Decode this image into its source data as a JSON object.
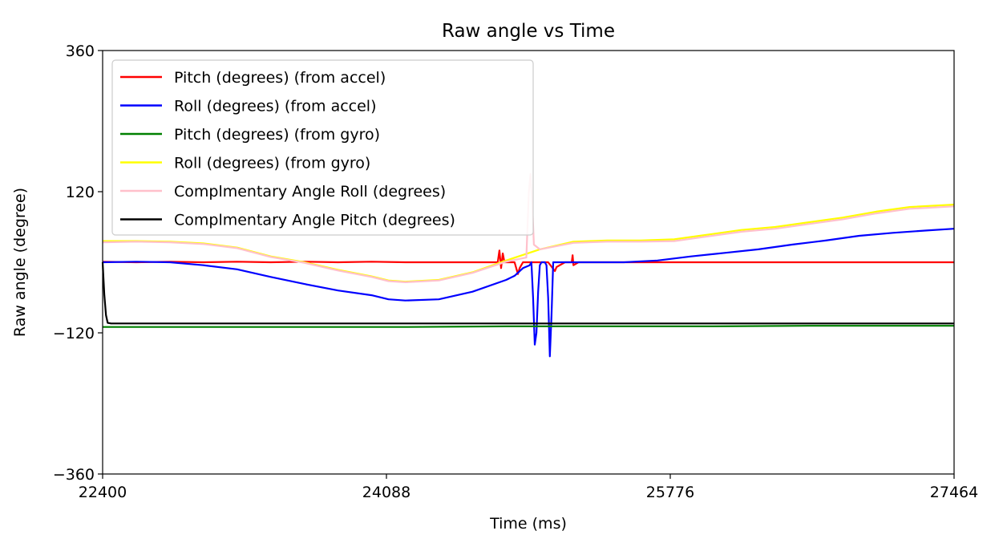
{
  "chart_data": {
    "type": "line",
    "title": "Raw angle vs Time",
    "xlabel": "Time (ms)",
    "ylabel": "Raw angle (degree)",
    "xlim": [
      22400,
      27464
    ],
    "ylim": [
      -360,
      360
    ],
    "xticks": [
      22400,
      24088,
      25776,
      27464
    ],
    "xtick_labels": [
      "22400",
      "24088",
      "25776",
      "27464"
    ],
    "yticks": [
      -360,
      -120,
      120,
      360
    ],
    "ytick_labels": [
      "−360",
      "−120",
      "120",
      "360"
    ],
    "grid": false,
    "legend_position": "top-left",
    "series": [
      {
        "name": "Pitch (degrees) (from accel)",
        "color": "#ff0000",
        "points": [
          [
            22400,
            1
          ],
          [
            22600,
            0
          ],
          [
            22800,
            1
          ],
          [
            23000,
            0
          ],
          [
            23200,
            1
          ],
          [
            23400,
            0
          ],
          [
            23600,
            1
          ],
          [
            23800,
            0
          ],
          [
            24000,
            1
          ],
          [
            24200,
            0
          ],
          [
            24400,
            0
          ],
          [
            24600,
            0
          ],
          [
            24750,
            0
          ],
          [
            24760,
            20
          ],
          [
            24770,
            -10
          ],
          [
            24780,
            15
          ],
          [
            24790,
            0
          ],
          [
            24850,
            0
          ],
          [
            24870,
            -20
          ],
          [
            24880,
            -10
          ],
          [
            24900,
            0
          ],
          [
            24950,
            0
          ],
          [
            25050,
            0
          ],
          [
            25090,
            -15
          ],
          [
            25100,
            -8
          ],
          [
            25150,
            0
          ],
          [
            25190,
            0
          ],
          [
            25195,
            12
          ],
          [
            25200,
            -5
          ],
          [
            25230,
            0
          ],
          [
            25300,
            0
          ],
          [
            25400,
            0
          ],
          [
            25600,
            0
          ],
          [
            25800,
            0
          ],
          [
            26000,
            0
          ],
          [
            26200,
            0
          ],
          [
            26400,
            0
          ],
          [
            26600,
            0
          ],
          [
            26800,
            0
          ],
          [
            27000,
            0
          ],
          [
            27200,
            0
          ],
          [
            27464,
            0
          ]
        ]
      },
      {
        "name": "Roll (degrees) (from accel)",
        "color": "#0000ff",
        "points": [
          [
            22400,
            0
          ],
          [
            22600,
            1
          ],
          [
            22800,
            0
          ],
          [
            23000,
            -5
          ],
          [
            23200,
            -12
          ],
          [
            23400,
            -25
          ],
          [
            23600,
            -37
          ],
          [
            23800,
            -48
          ],
          [
            24000,
            -56
          ],
          [
            24100,
            -63
          ],
          [
            24200,
            -65
          ],
          [
            24400,
            -63
          ],
          [
            24600,
            -50
          ],
          [
            24800,
            -30
          ],
          [
            24850,
            -23
          ],
          [
            24900,
            -10
          ],
          [
            24940,
            -5
          ],
          [
            24950,
            0
          ],
          [
            24960,
            -60
          ],
          [
            24970,
            -140
          ],
          [
            24980,
            -120
          ],
          [
            24990,
            -50
          ],
          [
            25000,
            -5
          ],
          [
            25010,
            0
          ],
          [
            25030,
            0
          ],
          [
            25040,
            -5
          ],
          [
            25050,
            -60
          ],
          [
            25060,
            -160
          ],
          [
            25070,
            -90
          ],
          [
            25080,
            0
          ],
          [
            25100,
            0
          ],
          [
            25200,
            0
          ],
          [
            25300,
            0
          ],
          [
            25500,
            0
          ],
          [
            25700,
            3
          ],
          [
            25900,
            10
          ],
          [
            26100,
            16
          ],
          [
            26300,
            22
          ],
          [
            26500,
            30
          ],
          [
            26700,
            37
          ],
          [
            26900,
            45
          ],
          [
            27100,
            50
          ],
          [
            27300,
            54
          ],
          [
            27464,
            57
          ]
        ]
      },
      {
        "name": "Pitch (degrees) (from gyro)",
        "color": "#008000",
        "points": [
          [
            22400,
            -110
          ],
          [
            23000,
            -110
          ],
          [
            23600,
            -110
          ],
          [
            24200,
            -110
          ],
          [
            24800,
            -109
          ],
          [
            25400,
            -109
          ],
          [
            26000,
            -109
          ],
          [
            26600,
            -108
          ],
          [
            27464,
            -108
          ]
        ]
      },
      {
        "name": "Roll (degrees) (from gyro)",
        "color": "#ffff00",
        "points": [
          [
            22400,
            36
          ],
          [
            22600,
            36
          ],
          [
            22800,
            35
          ],
          [
            23000,
            32
          ],
          [
            23200,
            25
          ],
          [
            23400,
            10
          ],
          [
            23600,
            0
          ],
          [
            23800,
            -13
          ],
          [
            24000,
            -24
          ],
          [
            24100,
            -31
          ],
          [
            24200,
            -33
          ],
          [
            24400,
            -30
          ],
          [
            24600,
            -17
          ],
          [
            24800,
            3
          ],
          [
            25000,
            22
          ],
          [
            25200,
            35
          ],
          [
            25400,
            37
          ],
          [
            25600,
            37
          ],
          [
            25800,
            39
          ],
          [
            25950,
            45
          ],
          [
            26200,
            55
          ],
          [
            26400,
            60
          ],
          [
            26600,
            68
          ],
          [
            26800,
            76
          ],
          [
            27000,
            86
          ],
          [
            27200,
            94
          ],
          [
            27464,
            98
          ]
        ]
      },
      {
        "name": "Complmentary Angle Roll (degrees)",
        "color": "#ffc0cb",
        "points": [
          [
            22400,
            34
          ],
          [
            22600,
            35
          ],
          [
            22800,
            34
          ],
          [
            23000,
            31
          ],
          [
            23200,
            24
          ],
          [
            23400,
            9
          ],
          [
            23600,
            -1
          ],
          [
            23800,
            -14
          ],
          [
            24000,
            -25
          ],
          [
            24100,
            -32
          ],
          [
            24200,
            -34
          ],
          [
            24400,
            -31
          ],
          [
            24600,
            -18
          ],
          [
            24800,
            1
          ],
          [
            24920,
            8
          ],
          [
            24935,
            120
          ],
          [
            24945,
            150
          ],
          [
            24955,
            100
          ],
          [
            24965,
            30
          ],
          [
            25000,
            22
          ],
          [
            25200,
            33
          ],
          [
            25400,
            35
          ],
          [
            25600,
            35
          ],
          [
            25800,
            36
          ],
          [
            25950,
            42
          ],
          [
            26200,
            52
          ],
          [
            26400,
            57
          ],
          [
            26600,
            65
          ],
          [
            26800,
            73
          ],
          [
            27000,
            83
          ],
          [
            27200,
            91
          ],
          [
            27464,
            95
          ]
        ]
      },
      {
        "name": "Complmentary Angle Pitch (degrees)",
        "color": "#000000",
        "points": [
          [
            22400,
            0
          ],
          [
            22410,
            -55
          ],
          [
            22420,
            -90
          ],
          [
            22430,
            -103
          ],
          [
            22450,
            -104
          ],
          [
            23000,
            -104
          ],
          [
            23600,
            -104
          ],
          [
            24200,
            -104
          ],
          [
            24800,
            -104
          ],
          [
            25400,
            -104
          ],
          [
            26000,
            -104
          ],
          [
            26600,
            -104
          ],
          [
            27464,
            -104
          ]
        ]
      }
    ]
  }
}
